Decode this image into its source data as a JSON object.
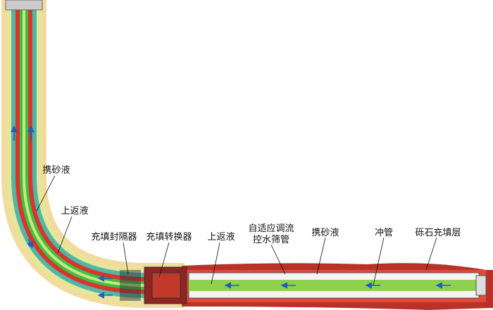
{
  "labels": [
    [
      "携砂液"
    ],
    [
      "上返液"
    ],
    [
      "充填封隔器"
    ],
    [
      "充填转换器"
    ],
    [
      "上返液"
    ],
    [
      "自适应调流",
      "控水筛管"
    ],
    [
      "携砂液"
    ],
    [
      "冲管"
    ],
    [
      "砾石充填层"
    ]
  ]
}
